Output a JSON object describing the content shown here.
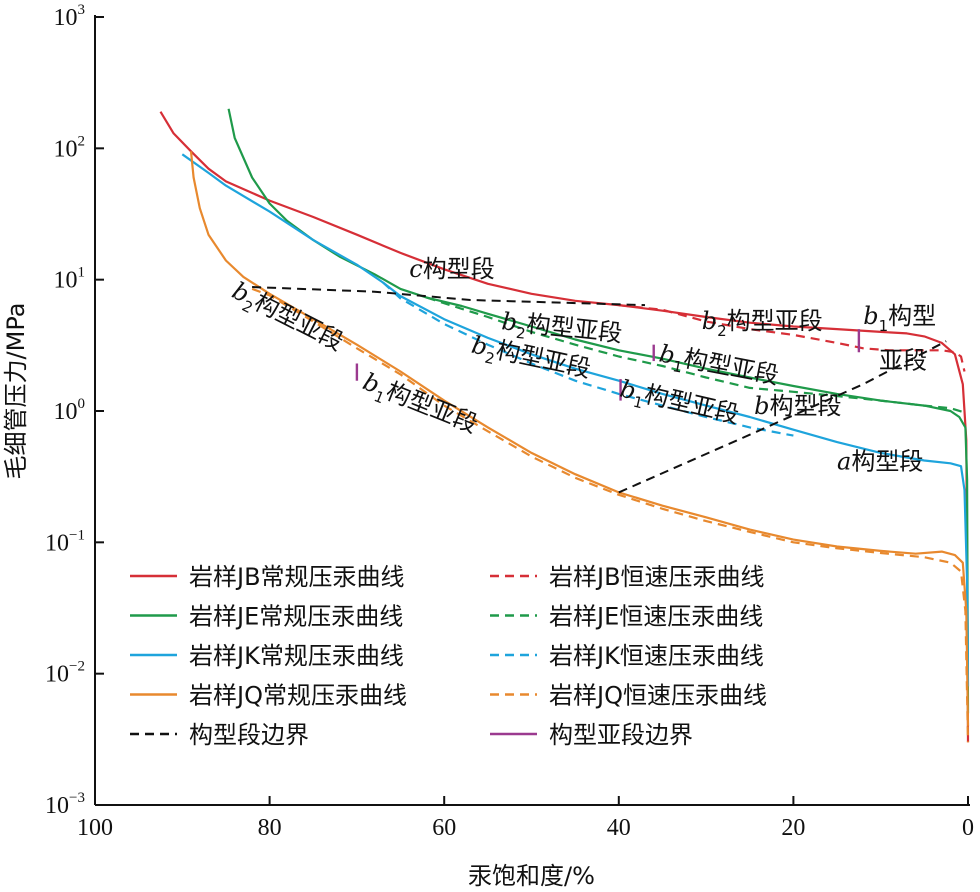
{
  "chart_data": {
    "type": "line",
    "xlabel": "汞饱和度/%",
    "ylabel": "毛细管压力/MPa",
    "x_range": [
      100,
      0
    ],
    "x_reversed": true,
    "y_scale": "log",
    "y_range": [
      0.001,
      1000
    ],
    "x_ticks": [
      "100",
      "80",
      "60",
      "40",
      "20",
      "0"
    ],
    "y_ticks": [
      {
        "base": "10",
        "exp": "3"
      },
      {
        "base": "10",
        "exp": "2"
      },
      {
        "base": "10",
        "exp": "1"
      },
      {
        "base": "10",
        "exp": "0"
      },
      {
        "base": "10",
        "exp": "−1"
      },
      {
        "base": "10",
        "exp": "−2"
      },
      {
        "base": "10",
        "exp": "−3"
      }
    ],
    "series": [
      {
        "name": "岩样JB常规压汞曲线",
        "color": "#d62f37",
        "dash": "solid",
        "points": [
          [
            92.5,
            190
          ],
          [
            91,
            130
          ],
          [
            89,
            95
          ],
          [
            87,
            70
          ],
          [
            85,
            56
          ],
          [
            80,
            40
          ],
          [
            75,
            30
          ],
          [
            70,
            22
          ],
          [
            65,
            16
          ],
          [
            60,
            12
          ],
          [
            55,
            9.3
          ],
          [
            50,
            7.8
          ],
          [
            45,
            6.9
          ],
          [
            40,
            6.4
          ],
          [
            35,
            5.8
          ],
          [
            30,
            5.2
          ],
          [
            25,
            4.7
          ],
          [
            20,
            4.4
          ],
          [
            15,
            4.2
          ],
          [
            10,
            4.0
          ],
          [
            7,
            3.9
          ],
          [
            5,
            3.7
          ],
          [
            3,
            3.3
          ],
          [
            1.5,
            2.7
          ],
          [
            0.6,
            1.6
          ],
          [
            0.2,
            0.6
          ],
          [
            0.05,
            0.02
          ],
          [
            0,
            0.003
          ]
        ]
      },
      {
        "name": "岩样JB恒速压汞曲线",
        "color": "#d62f37",
        "dash": "dashed",
        "points": [
          [
            40,
            6.4
          ],
          [
            35,
            5.9
          ],
          [
            30,
            4.8
          ],
          [
            25,
            4.2
          ],
          [
            20,
            3.8
          ],
          [
            15,
            3.3
          ],
          [
            12,
            3.0
          ],
          [
            9,
            2.9
          ],
          [
            6,
            2.9
          ],
          [
            3,
            2.9
          ],
          [
            1.5,
            2.8
          ],
          [
            0.8,
            2.6
          ],
          [
            0.4,
            2.0
          ]
        ]
      },
      {
        "name": "岩样JE常规压汞曲线",
        "color": "#1f9a4a",
        "dash": "solid",
        "points": [
          [
            84.7,
            200
          ],
          [
            84,
            120
          ],
          [
            82,
            60
          ],
          [
            80,
            38
          ],
          [
            78,
            28
          ],
          [
            75,
            20
          ],
          [
            72,
            15
          ],
          [
            68,
            11
          ],
          [
            65,
            8.5
          ],
          [
            62,
            7.3
          ],
          [
            58,
            6.3
          ],
          [
            55,
            5.5
          ],
          [
            50,
            4.4
          ],
          [
            45,
            3.5
          ],
          [
            40,
            2.9
          ],
          [
            35,
            2.5
          ],
          [
            30,
            2.1
          ],
          [
            25,
            1.8
          ],
          [
            20,
            1.55
          ],
          [
            15,
            1.35
          ],
          [
            10,
            1.2
          ],
          [
            5,
            1.1
          ],
          [
            2,
            1.0
          ],
          [
            1,
            0.9
          ],
          [
            0.3,
            0.75
          ],
          [
            0.1,
            0.3
          ],
          [
            0,
            0.005
          ]
        ]
      },
      {
        "name": "岩样JE恒速压汞曲线",
        "color": "#1f9a4a",
        "dash": "dashed",
        "points": [
          [
            62,
            7.3
          ],
          [
            58,
            6.0
          ],
          [
            55,
            5.2
          ],
          [
            50,
            4.0
          ],
          [
            45,
            3.2
          ],
          [
            40,
            2.6
          ],
          [
            35,
            2.2
          ],
          [
            30,
            1.8
          ],
          [
            25,
            1.5
          ],
          [
            20,
            1.4
          ],
          [
            15,
            1.3
          ],
          [
            10,
            1.2
          ],
          [
            5,
            1.1
          ],
          [
            2,
            1.05
          ],
          [
            0.5,
            0.98
          ]
        ]
      },
      {
        "name": "岩样JK常规压汞曲线",
        "color": "#1ea4dc",
        "dash": "solid",
        "points": [
          [
            90,
            90
          ],
          [
            87,
            65
          ],
          [
            85,
            52
          ],
          [
            80,
            33
          ],
          [
            75,
            20
          ],
          [
            70,
            13
          ],
          [
            67,
            9.5
          ],
          [
            65,
            7.5
          ],
          [
            60,
            5.0
          ],
          [
            55,
            3.6
          ],
          [
            50,
            2.7
          ],
          [
            45,
            2.1
          ],
          [
            40,
            1.7
          ],
          [
            35,
            1.35
          ],
          [
            30,
            1.1
          ],
          [
            25,
            0.9
          ],
          [
            20,
            0.72
          ],
          [
            15,
            0.58
          ],
          [
            10,
            0.48
          ],
          [
            5,
            0.42
          ],
          [
            2,
            0.4
          ],
          [
            0.8,
            0.38
          ],
          [
            0.4,
            0.25
          ],
          [
            0.1,
            0.05
          ],
          [
            0,
            0.008
          ]
        ]
      },
      {
        "name": "岩样JK恒速压汞曲线",
        "color": "#1ea4dc",
        "dash": "dashed",
        "points": [
          [
            67,
            9.5
          ],
          [
            65,
            7.2
          ],
          [
            60,
            4.6
          ],
          [
            55,
            3.2
          ],
          [
            50,
            2.3
          ],
          [
            45,
            1.7
          ],
          [
            40,
            1.35
          ],
          [
            35,
            1.1
          ],
          [
            30,
            0.9
          ],
          [
            25,
            0.75
          ],
          [
            20,
            0.65
          ]
        ]
      },
      {
        "name": "岩样JQ常规压汞曲线",
        "color": "#e8892e",
        "dash": "solid",
        "points": [
          [
            89,
            95
          ],
          [
            88.7,
            60
          ],
          [
            88,
            35
          ],
          [
            87,
            22
          ],
          [
            85,
            14
          ],
          [
            83,
            10.5
          ],
          [
            80,
            7.8
          ],
          [
            75,
            5.0
          ],
          [
            70,
            3.2
          ],
          [
            65,
            2.0
          ],
          [
            60,
            1.2
          ],
          [
            55,
            0.75
          ],
          [
            50,
            0.48
          ],
          [
            45,
            0.33
          ],
          [
            40,
            0.24
          ],
          [
            35,
            0.19
          ],
          [
            30,
            0.155
          ],
          [
            25,
            0.125
          ],
          [
            20,
            0.105
          ],
          [
            15,
            0.093
          ],
          [
            10,
            0.086
          ],
          [
            6,
            0.082
          ],
          [
            3,
            0.085
          ],
          [
            1.5,
            0.08
          ],
          [
            0.6,
            0.07
          ],
          [
            0.2,
            0.03
          ],
          [
            0,
            0.004
          ]
        ]
      },
      {
        "name": "岩样JQ恒速压汞曲线",
        "color": "#e8892e",
        "dash": "dashed",
        "points": [
          [
            82,
            8.5
          ],
          [
            80,
            7.6
          ],
          [
            75,
            4.8
          ],
          [
            70,
            3.0
          ],
          [
            65,
            1.9
          ],
          [
            60,
            1.1
          ],
          [
            55,
            0.7
          ],
          [
            50,
            0.45
          ],
          [
            45,
            0.31
          ],
          [
            40,
            0.23
          ],
          [
            35,
            0.18
          ],
          [
            30,
            0.145
          ],
          [
            25,
            0.12
          ],
          [
            20,
            0.1
          ],
          [
            15,
            0.09
          ],
          [
            10,
            0.083
          ],
          [
            5,
            0.077
          ],
          [
            2,
            0.07
          ],
          [
            0.8,
            0.06
          ],
          [
            0.3,
            0.03
          ],
          [
            0,
            0.003
          ]
        ]
      }
    ],
    "boundary_lines": [
      {
        "name": "构型段边界",
        "color": "#111111",
        "points": [
          [
            82,
            8.8
          ],
          [
            68,
            8.1
          ],
          [
            57,
            7.0
          ],
          [
            37,
            6.4
          ]
        ]
      },
      {
        "name": "构型段边界",
        "color": "#111111",
        "points": [
          [
            40,
            0.24
          ],
          [
            25,
            0.66
          ],
          [
            12,
            1.6
          ],
          [
            2.5,
            3.4
          ]
        ]
      }
    ],
    "subsegment_boundaries": [
      {
        "x": 70,
        "y_low": 1.7,
        "y_high": 2.3
      },
      {
        "x": 39.8,
        "y_low": 1.2,
        "y_high": 1.75
      },
      {
        "x": 36,
        "y_low": 2.4,
        "y_high": 3.2
      },
      {
        "x": 12.5,
        "y_low": 2.8,
        "y_high": 4.2
      }
    ],
    "annotations": [
      {
        "key": "c",
        "prefix": "c",
        "text": "构型段",
        "x": 64,
        "y": 10.5,
        "rotate": 0
      },
      {
        "key": "b2_jq",
        "prefix": "b",
        "sub": "2",
        "text": "构型亚段",
        "x": 84.5,
        "y": 7.5,
        "rotate": 27
      },
      {
        "key": "b1_jq",
        "prefix": "b",
        "sub": "1",
        "text": "构型亚段",
        "x": 69.5,
        "y": 1.5,
        "rotate": 22
      },
      {
        "key": "b2_je",
        "prefix": "b",
        "sub": "2",
        "text": "构型亚段",
        "x": 53.5,
        "y": 4.2,
        "rotate": 6
      },
      {
        "key": "b2_jk",
        "prefix": "b",
        "sub": "2",
        "text": "构型亚段",
        "x": 57,
        "y": 2.8,
        "rotate": 12
      },
      {
        "key": "b1_je",
        "prefix": "b",
        "sub": "1",
        "text": "构型亚段",
        "x": 35.5,
        "y": 2.4,
        "rotate": 11
      },
      {
        "key": "b1_jk",
        "prefix": "b",
        "sub": "1",
        "text": "构型亚段",
        "x": 40,
        "y": 1.3,
        "rotate": 13
      },
      {
        "key": "b2_jb",
        "prefix": "b",
        "sub": "2",
        "text": "构型亚段",
        "x": 30.5,
        "y": 4.2,
        "rotate": 0
      },
      {
        "key": "b_seg",
        "prefix": "b",
        "text": "构型段",
        "x": 24.5,
        "y": 0.95,
        "rotate": 0
      },
      {
        "key": "b1_jb_1",
        "prefix": "b",
        "sub": "1",
        "text": "构型",
        "x": 12,
        "y": 4.6,
        "rotate": 0
      },
      {
        "key": "b1_jb_2",
        "prefix": "",
        "text": "亚段",
        "x": 10.2,
        "y": 2.1,
        "rotate": 0
      },
      {
        "key": "a",
        "prefix": "a",
        "text": "构型段",
        "x": 15,
        "y": 0.36,
        "rotate": 0
      }
    ],
    "legend": [
      {
        "name": "岩样JB常规压汞曲线",
        "color": "#d62f37",
        "dash": "solid"
      },
      {
        "name": "岩样JB恒速压汞曲线",
        "color": "#d62f37",
        "dash": "dashed"
      },
      {
        "name": "岩样JE常规压汞曲线",
        "color": "#1f9a4a",
        "dash": "solid"
      },
      {
        "name": "岩样JE恒速压汞曲线",
        "color": "#1f9a4a",
        "dash": "dashed"
      },
      {
        "name": "岩样JK常规压汞曲线",
        "color": "#1ea4dc",
        "dash": "solid"
      },
      {
        "name": "岩样JK恒速压汞曲线",
        "color": "#1ea4dc",
        "dash": "dashed"
      },
      {
        "name": "岩样JQ常规压汞曲线",
        "color": "#e8892e",
        "dash": "solid"
      },
      {
        "name": "岩样JQ恒速压汞曲线",
        "color": "#e8892e",
        "dash": "dashed"
      },
      {
        "name": "构型段边界",
        "color": "#111111",
        "dash": "dashed"
      },
      {
        "name": "构型亚段边界",
        "color": "#9b3a8f",
        "dash": "solid"
      }
    ],
    "legend_placement": "bottom-left",
    "grid": false,
    "subsegment_color": "#9b3a8f"
  }
}
